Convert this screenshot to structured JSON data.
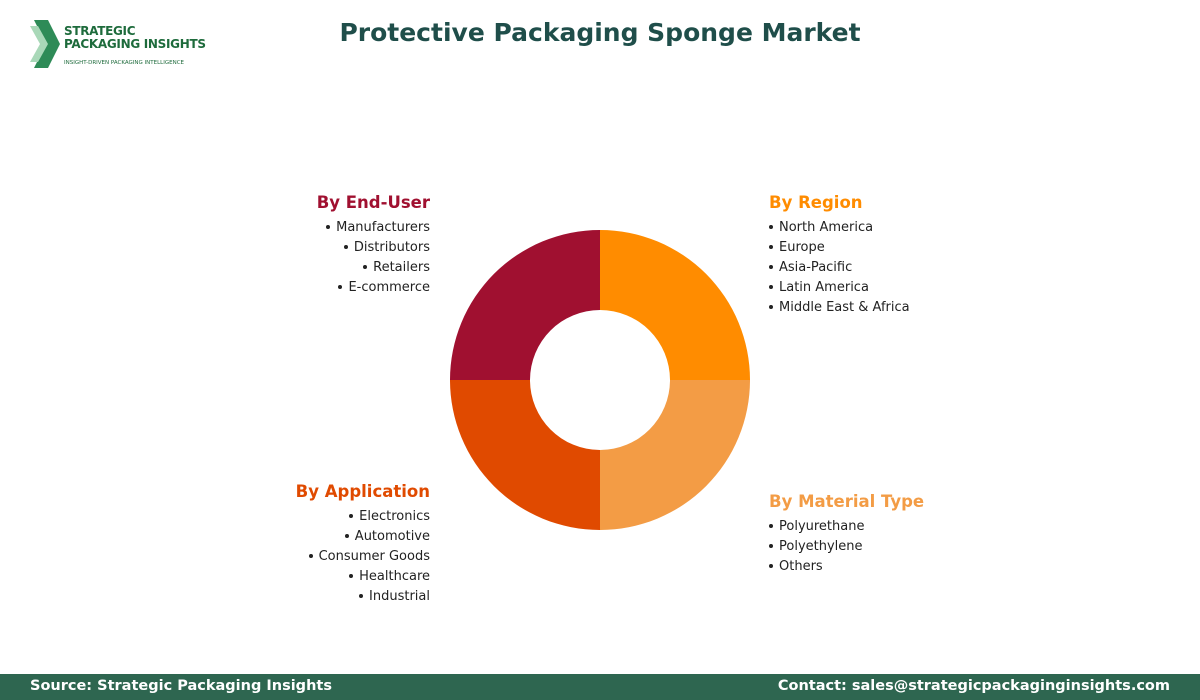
{
  "logo": {
    "name_line1": "STRATEGIC",
    "name_line2": "PACKAGING INSIGHTS",
    "tagline": "INSIGHT-DRIVEN PACKAGING INTELLIGENCE"
  },
  "title": "Protective Packaging Sponge Market",
  "segments": [
    {
      "title": "By Region",
      "color": "#ff8c00",
      "items": [
        "North America",
        "Europe",
        "Asia-Pacific",
        "Latin America",
        "Middle East & Africa"
      ]
    },
    {
      "title": "By Material Type",
      "color": "#f39c45",
      "items": [
        "Polyurethane",
        "Polyethylene",
        "Others"
      ]
    },
    {
      "title": "By Application",
      "color": "#e04a00",
      "items": [
        "Electronics",
        "Automotive",
        "Consumer Goods",
        "Healthcare",
        "Industrial"
      ]
    },
    {
      "title": "By End-User",
      "color": "#a01030",
      "items": [
        "Manufacturers",
        "Distributors",
        "Retailers",
        "E-commerce"
      ]
    }
  ],
  "footer": {
    "source": "Source: Strategic Packaging Insights",
    "contact": "Contact: sales@strategicpackaginginsights.com"
  }
}
